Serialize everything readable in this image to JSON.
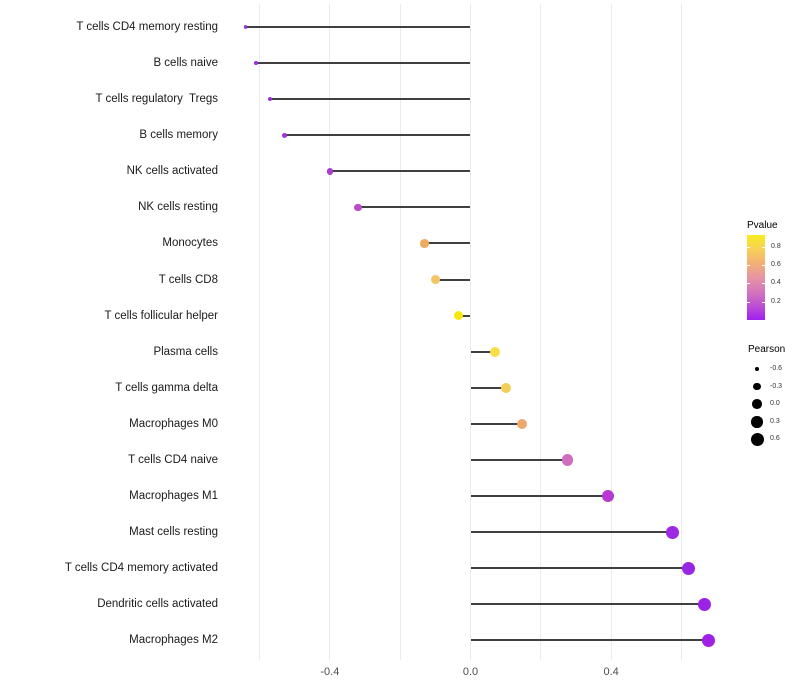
{
  "chart_data": {
    "type": "scatter",
    "subtype": "lollipop",
    "orientation": "horizontal",
    "title": "",
    "xlabel": "",
    "ylabel": "",
    "categories": [
      "T cells CD4 memory resting",
      "B cells naive",
      "T cells regulatory  Tregs",
      "B cells memory",
      "NK cells activated",
      "NK cells resting",
      "Monocytes",
      "T cells CD8",
      "T cells follicular helper",
      "Plasma cells",
      "T cells gamma delta",
      "Macrophages M0",
      "T cells CD4 naive",
      "Macrophages M1",
      "Mast cells resting",
      "T cells CD4 memory activated",
      "Dendritic cells activated",
      "Macrophages M2"
    ],
    "series": [
      {
        "name": "Pearson",
        "values": [
          -0.64,
          -0.61,
          -0.57,
          -0.53,
          -0.4,
          -0.32,
          -0.13,
          -0.1,
          -0.035,
          0.07,
          0.1,
          0.146,
          0.275,
          0.39,
          0.575,
          0.62,
          0.665,
          0.677
        ]
      }
    ],
    "point_colors": [
      "#9731DF",
      "#9930E0",
      "#9B2FE0",
      "#A133DC",
      "#AC38D6",
      "#BC4BC8",
      "#EDAB62",
      "#F2C566",
      "#F8E70E",
      "#F6DE4B",
      "#F2CE58",
      "#ECA76B",
      "#D06EBE",
      "#B63AD0",
      "#9D29E2",
      "#9926E4",
      "#9C22E5",
      "#A01FE5"
    ],
    "baseline": 0,
    "xlim": [
      -0.71,
      0.7
    ],
    "x_tick_labels": [
      "-0.4",
      "0.0",
      "0.4"
    ],
    "x_tick_values": [
      -0.4,
      0.0,
      0.4
    ],
    "x_gridline_values": [
      -0.6,
      -0.4,
      -0.2,
      0.0,
      0.2,
      0.4,
      0.6
    ],
    "grid": true,
    "legend_position": "right",
    "legends": {
      "color": {
        "title": "Pvalue",
        "tick_labels": [
          "0.8",
          "0.6",
          "0.4",
          "0.2"
        ],
        "tick_values": [
          0.8,
          0.6,
          0.4,
          0.2
        ],
        "range": [
          0.0,
          0.93
        ],
        "gradient_stops_top_to_bottom": [
          "#F9EC1F",
          "#F7D157",
          "#F2B077",
          "#E794A3",
          "#D476BC",
          "#BC4FD4",
          "#A21FEF"
        ]
      },
      "size": {
        "title": "Pearson",
        "entry_labels": [
          "-0.6",
          "-0.3",
          "0.0",
          "0.3",
          "0.6"
        ],
        "entry_values": [
          -0.6,
          -0.3,
          0.0,
          0.3,
          0.6
        ]
      }
    }
  }
}
